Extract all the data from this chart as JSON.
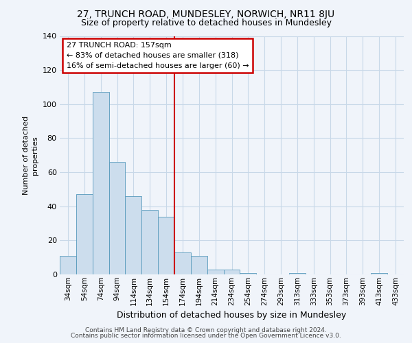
{
  "title1": "27, TRUNCH ROAD, MUNDESLEY, NORWICH, NR11 8JU",
  "title2": "Size of property relative to detached houses in Mundesley",
  "xlabel": "Distribution of detached houses by size in Mundesley",
  "ylabel": "Number of detached\nproperties",
  "categories": [
    "34sqm",
    "54sqm",
    "74sqm",
    "94sqm",
    "114sqm",
    "134sqm",
    "154sqm",
    "174sqm",
    "194sqm",
    "214sqm",
    "234sqm",
    "254sqm",
    "274sqm",
    "293sqm",
    "313sqm",
    "333sqm",
    "353sqm",
    "373sqm",
    "393sqm",
    "413sqm",
    "433sqm"
  ],
  "values": [
    11,
    47,
    107,
    66,
    46,
    38,
    34,
    13,
    11,
    3,
    3,
    1,
    0,
    0,
    1,
    0,
    0,
    0,
    0,
    1,
    0
  ],
  "bar_color": "#ccdded",
  "bar_edge_color": "#5599bb",
  "vline_color": "#cc0000",
  "annotation_box_edge": "#cc0000",
  "annotation_line1": "27 TRUNCH ROAD: 157sqm",
  "annotation_line2": "← 83% of detached houses are smaller (318)",
  "annotation_line3": "16% of semi-detached houses are larger (60) →",
  "footer1": "Contains HM Land Registry data © Crown copyright and database right 2024.",
  "footer2": "Contains public sector information licensed under the Open Government Licence v3.0.",
  "ylim": [
    0,
    140
  ],
  "yticks": [
    0,
    20,
    40,
    60,
    80,
    100,
    120,
    140
  ],
  "vline_x": 6.5,
  "background_color": "#f0f4fa",
  "grid_color": "#c8d8e8"
}
